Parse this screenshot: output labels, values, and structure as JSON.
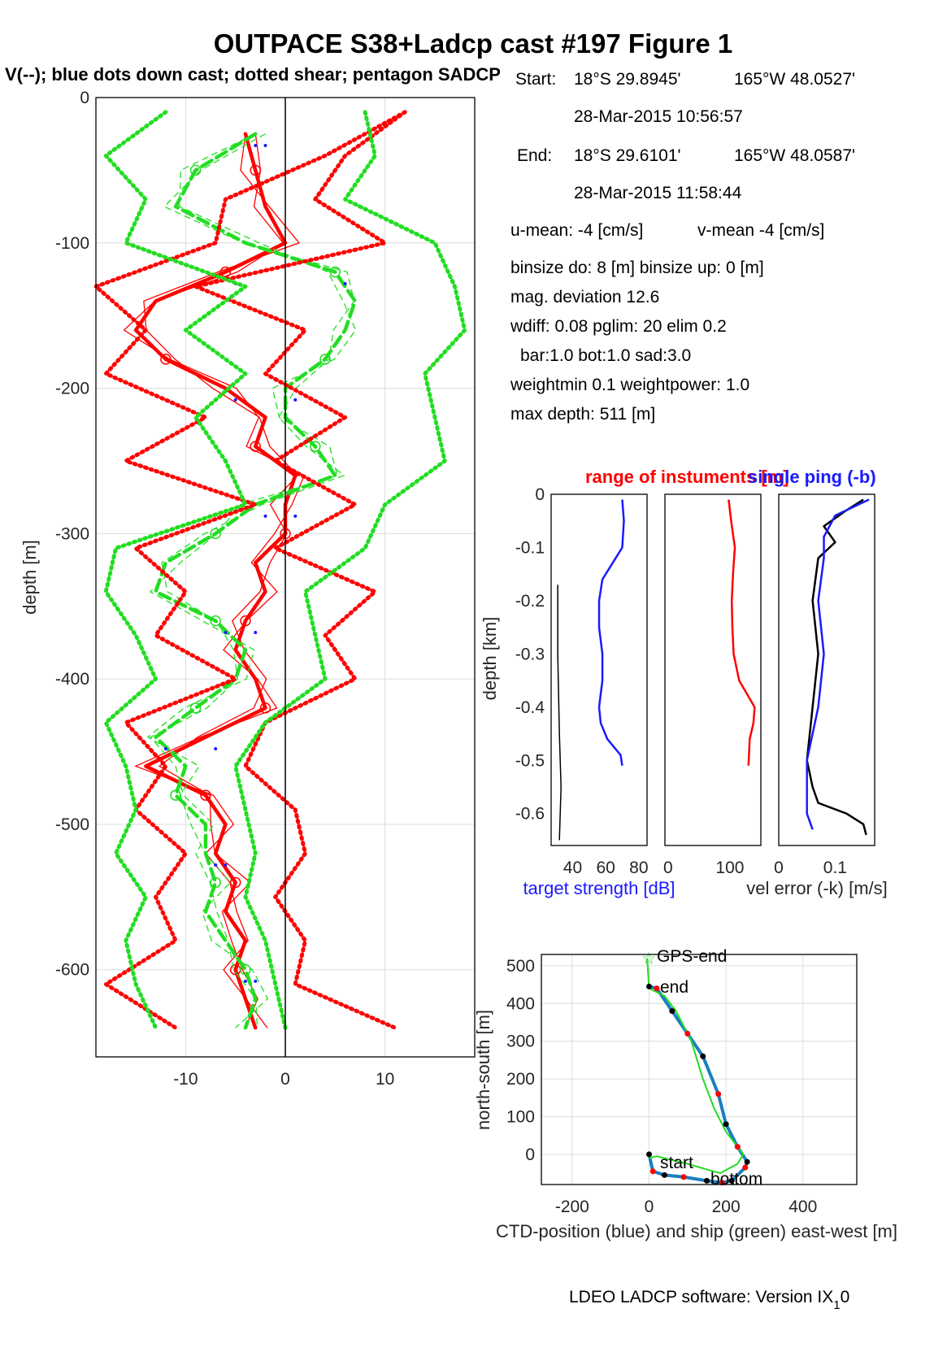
{
  "title": "OUTPACE S38+Ladcp cast #197  Figure 1",
  "subtitle": "V(--); blue dots down cast; dotted shear; pentagon SADCP",
  "footer": "LDEO LADCP software: Version IX",
  "footer_sub": "1",
  "footer_tail": "0",
  "info": {
    "start_label": "Start:",
    "start_lat": "18°S 29.8945'",
    "start_lon": "165°W 48.0527'",
    "start_time": "28-Mar-2015 10:56:57",
    "end_label": "End:",
    "end_lat": "18°S 29.6101'",
    "end_lon": "165°W 48.0587'",
    "end_time": "28-Mar-2015 11:58:44",
    "umean": "u-mean:  -4 [cm/s]",
    "vmean": "v-mean  -4 [cm/s]",
    "binsize": "binsize do: 8 [m]  binsize up:  0 [m]",
    "magdev": "mag. deviation 12.6",
    "wdiff": "wdiff: 0.08  pglim: 20  elim 0.2",
    "bar": "bar:1.0 bot:1.0 sad:3.0",
    "weight": "weightmin 0.1  weightpower: 1.0",
    "maxdepth": "max depth: 511 [m]"
  },
  "colors": {
    "red": "#ff0000",
    "green": "#22dd22",
    "blue": "#1a1aff",
    "black": "#000000",
    "cyan": "#1a7fc0"
  },
  "chart_data": [
    {
      "type": "line",
      "name": "velocity profile",
      "ylabel": "depth [m]",
      "xlim": [
        -19,
        19
      ],
      "ylim": [
        -660,
        0
      ],
      "xticks": [
        -10,
        0,
        10
      ],
      "yticks": [
        0,
        -100,
        -200,
        -300,
        -400,
        -500,
        -600
      ],
      "grid": true,
      "series": [
        {
          "name": "U",
          "color": "#ff0000",
          "depth": [
            -25,
            -50,
            -75,
            -100,
            -120,
            -140,
            -160,
            -180,
            -200,
            -220,
            -240,
            -260,
            -280,
            -300,
            -320,
            -340,
            -360,
            -380,
            -400,
            -420,
            -440,
            -460,
            -480,
            -500,
            -520,
            -540,
            -560,
            -580,
            -600,
            -620,
            -640
          ],
          "values": [
            -4,
            -3,
            -2,
            0,
            -6,
            -13,
            -15,
            -12,
            -6,
            -2,
            -3,
            1,
            0,
            0,
            -3,
            -2,
            -4,
            -5,
            -3,
            -2,
            -8,
            -14,
            -8,
            -6,
            -7,
            -5,
            -6,
            -4,
            -5,
            -4,
            -3
          ]
        },
        {
          "name": "V",
          "color": "#22dd22",
          "depth": [
            -25,
            -50,
            -75,
            -100,
            -120,
            -140,
            -160,
            -180,
            -200,
            -220,
            -240,
            -260,
            -280,
            -300,
            -320,
            -340,
            -360,
            -380,
            -400,
            -420,
            -440,
            -460,
            -480,
            -500,
            -520,
            -540,
            -560,
            -580,
            -600,
            -620,
            -640
          ],
          "values": [
            -3,
            -9,
            -11,
            -4,
            5,
            7,
            6,
            4,
            0,
            0,
            3,
            5,
            -3,
            -7,
            -12,
            -13,
            -7,
            -4,
            -5,
            -9,
            -13,
            -10,
            -11,
            -8,
            -8,
            -7,
            -8,
            -6,
            -4,
            -3,
            -4
          ]
        },
        {
          "name": "U shear",
          "color": "#ff0000",
          "depth": [
            -10,
            -40,
            -70,
            -100,
            -130,
            -160,
            -190,
            -220,
            -250,
            -280,
            -310,
            -340,
            -370,
            -400,
            -430,
            -460,
            -490,
            -520,
            -550,
            -580,
            -610,
            -640
          ],
          "values": [
            12,
            4,
            -6,
            -7,
            -19,
            -14,
            -18,
            -8,
            -16,
            -3,
            -15,
            -10,
            -13,
            -5,
            -16,
            -12,
            -15,
            -10,
            -13,
            -11,
            -18,
            -11
          ]
        },
        {
          "name": "U shear",
          "color": "#ff0000",
          "depth": [
            -10,
            -40,
            -70,
            -100,
            -130,
            -160,
            -190,
            -220,
            -250,
            -280,
            -310,
            -340,
            -370,
            -400,
            -430,
            -460,
            -490,
            -520,
            -550,
            -580,
            -610,
            -640
          ],
          "values": [
            12,
            6,
            3,
            10,
            -9,
            2,
            -2,
            6,
            -1,
            7,
            -1,
            9,
            4,
            7,
            -2,
            -4,
            1,
            2,
            -1,
            2,
            1,
            11
          ]
        },
        {
          "name": "V shear",
          "color": "#22dd22",
          "depth": [
            -10,
            -40,
            -70,
            -100,
            -130,
            -160,
            -190,
            -220,
            -250,
            -280,
            -310,
            -340,
            -370,
            -400,
            -430,
            -460,
            -490,
            -520,
            -550,
            -580,
            -610,
            -640
          ],
          "values": [
            -12,
            -18,
            -14,
            -16,
            -4,
            -10,
            -4,
            -9,
            -6,
            -4,
            -17,
            -18,
            -15,
            -13,
            -18,
            -16,
            -15,
            -17,
            -14,
            -16,
            -15,
            -13
          ]
        },
        {
          "name": "V shear",
          "color": "#22dd22",
          "depth": [
            -10,
            -40,
            -70,
            -100,
            -130,
            -160,
            -190,
            -220,
            -250,
            -280,
            -310,
            -340,
            -370,
            -400,
            -430,
            -460,
            -490,
            -520,
            -550,
            -580,
            -610,
            -640
          ],
          "values": [
            8,
            9,
            6,
            15,
            17,
            18,
            14,
            15,
            16,
            10,
            8,
            2,
            3,
            4,
            -2,
            -5,
            -4,
            -3,
            -4,
            -2,
            -1,
            0
          ]
        }
      ]
    },
    {
      "type": "line",
      "name": "target strength",
      "xlabel": "target strength [dB]",
      "ylabel": "depth [km]",
      "xlim": [
        27,
        85
      ],
      "ylim": [
        -0.66,
        0
      ],
      "xticks": [
        40,
        60,
        80
      ],
      "yticks": [
        0,
        -0.1,
        -0.2,
        -0.3,
        -0.4,
        -0.5,
        -0.6
      ],
      "series": [
        {
          "name": "target strength",
          "color": "#1a1aff",
          "depth": [
            -0.01,
            -0.05,
            -0.1,
            -0.13,
            -0.16,
            -0.2,
            -0.25,
            -0.3,
            -0.35,
            -0.4,
            -0.43,
            -0.46,
            -0.49,
            -0.51
          ],
          "values": [
            70,
            71,
            70,
            64,
            58,
            56,
            56,
            58,
            58,
            56,
            57,
            61,
            69,
            70
          ]
        },
        {
          "name": "range",
          "color": "#000000",
          "depth": [
            -0.17,
            -0.3,
            -0.45,
            -0.55,
            -0.65
          ],
          "values": [
            31,
            31,
            32,
            33,
            32
          ]
        }
      ]
    },
    {
      "type": "line",
      "name": "range of instruments",
      "title": "range of instuments [m]",
      "xlim": [
        -5,
        150
      ],
      "ylim": [
        -0.66,
        0
      ],
      "xticks": [
        0,
        100
      ],
      "series": [
        {
          "name": "range",
          "color": "#ff0000",
          "depth": [
            -0.01,
            -0.05,
            -0.1,
            -0.15,
            -0.2,
            -0.25,
            -0.3,
            -0.35,
            -0.38,
            -0.4,
            -0.43,
            -0.46,
            -0.51
          ],
          "values": [
            98,
            102,
            108,
            105,
            103,
            104,
            106,
            115,
            130,
            140,
            138,
            132,
            130
          ]
        }
      ]
    },
    {
      "type": "line",
      "name": "vel error",
      "title": "single ping (-b)",
      "xlabel": "vel error (-k) [m/s]",
      "xlim": [
        0,
        0.17
      ],
      "ylim": [
        -0.66,
        0
      ],
      "xticks": [
        0,
        0.1
      ],
      "series": [
        {
          "name": "vel error (-k)",
          "color": "#000000",
          "depth": [
            -0.01,
            -0.03,
            -0.06,
            -0.09,
            -0.12,
            -0.2,
            -0.3,
            -0.4,
            -0.5,
            -0.55,
            -0.58,
            -0.6,
            -0.62,
            -0.64
          ],
          "values": [
            0.15,
            0.12,
            0.08,
            0.1,
            0.07,
            0.06,
            0.07,
            0.06,
            0.05,
            0.06,
            0.07,
            0.12,
            0.15,
            0.155
          ]
        },
        {
          "name": "single ping (-b)",
          "color": "#1a1aff",
          "depth": [
            -0.01,
            -0.04,
            -0.08,
            -0.12,
            -0.2,
            -0.3,
            -0.4,
            -0.5,
            -0.55,
            -0.6,
            -0.63
          ],
          "values": [
            0.16,
            0.1,
            0.08,
            0.08,
            0.07,
            0.08,
            0.07,
            0.05,
            0.05,
            0.05,
            0.06
          ]
        }
      ]
    },
    {
      "type": "line",
      "name": "ctd position",
      "xlabel": "CTD-position (blue) and ship (green) east-west [m]",
      "ylabel": "north-south [m]",
      "xlim": [
        -280,
        540
      ],
      "ylim": [
        -80,
        530
      ],
      "xticks": [
        -200,
        0,
        200,
        400
      ],
      "yticks": [
        0,
        100,
        200,
        300,
        400,
        500
      ],
      "annotations": [
        "GPS-end",
        "end",
        "start",
        "bottom"
      ],
      "series": [
        {
          "name": "CTD",
          "color": "#1a7fc0",
          "x": [
            0,
            20,
            60,
            100,
            140,
            180,
            200,
            230,
            255,
            250,
            215,
            190,
            150,
            90,
            40,
            10,
            0
          ],
          "y": [
            445,
            440,
            380,
            320,
            260,
            160,
            80,
            20,
            -20,
            -35,
            -70,
            -75,
            -70,
            -60,
            -55,
            -45,
            0
          ]
        },
        {
          "name": "ship",
          "color": "#22dd22",
          "x": [
            -5,
            0,
            40,
            70,
            110,
            140,
            170,
            200,
            245,
            230,
            185,
            150,
            100,
            60,
            20,
            0
          ],
          "y": [
            520,
            440,
            420,
            380,
            300,
            200,
            120,
            60,
            0,
            -25,
            -50,
            -40,
            -25,
            -15,
            -5,
            -10
          ]
        }
      ]
    }
  ]
}
